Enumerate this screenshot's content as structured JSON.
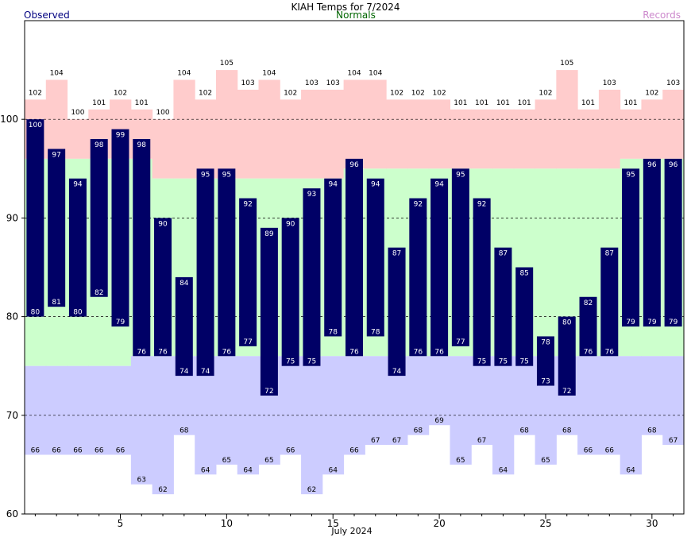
{
  "chart_data": {
    "type": "bar",
    "title": "KIAH Temps for 7/2024",
    "legend": {
      "observed": "Observed",
      "normals": "Normals",
      "records": "Records",
      "placement": "top"
    },
    "xlabel": "July 2024",
    "ylim": [
      60,
      110
    ],
    "yticks": [
      "60",
      "70",
      "80",
      "90",
      "100"
    ],
    "xticks": [
      {
        "day": 5,
        "label": "5"
      },
      {
        "day": 10,
        "label": "10"
      },
      {
        "day": 15,
        "label": "15"
      },
      {
        "day": 20,
        "label": "20"
      },
      {
        "day": 25,
        "label": "25"
      },
      {
        "day": 30,
        "label": "30"
      }
    ],
    "grid_lines": [
      70,
      80,
      90,
      100
    ],
    "colors": {
      "observed": "#000066",
      "normal": "#ccffcc",
      "record_high": "#ffcccc",
      "record_low": "#ccccff",
      "observed_label": "#000080",
      "normals_label": "#006600",
      "records_label": "#cc88cc"
    },
    "days": [
      1,
      2,
      3,
      4,
      5,
      6,
      7,
      8,
      9,
      10,
      11,
      12,
      13,
      14,
      15,
      16,
      17,
      18,
      19,
      20,
      21,
      22,
      23,
      24,
      25,
      26,
      27,
      28,
      29,
      30,
      31
    ],
    "observed_high": [
      "100",
      "97",
      "94",
      "98",
      "99",
      "98",
      "90",
      "84",
      "95",
      "95",
      "92",
      "89",
      "90",
      "93",
      "94",
      "96",
      "94",
      "87",
      "92",
      "94",
      "95",
      "92",
      "87",
      "85",
      "78",
      "80",
      "82",
      "87",
      "95",
      "96",
      "96"
    ],
    "observed_low": [
      "80",
      "81",
      "80",
      "82",
      "79",
      "76",
      "76",
      "74",
      "74",
      "76",
      "77",
      "72",
      "75",
      "75",
      "78",
      "76",
      "78",
      "74",
      "76",
      "76",
      "77",
      "75",
      "75",
      "75",
      "73",
      "72",
      "76",
      "76",
      "79",
      "79",
      "79"
    ],
    "normal_high": [
      96,
      96,
      96,
      96,
      96,
      96,
      94,
      94,
      94,
      94,
      94,
      94,
      94,
      94,
      94,
      95,
      95,
      95,
      95,
      95,
      95,
      95,
      95,
      95,
      95,
      95,
      95,
      95,
      96,
      96,
      96
    ],
    "normal_low": [
      75,
      75,
      75,
      75,
      75,
      76,
      76,
      76,
      76,
      76,
      76,
      76,
      76,
      76,
      76,
      76,
      76,
      76,
      76,
      76,
      76,
      76,
      76,
      76,
      76,
      76,
      76,
      76,
      76,
      76,
      76
    ],
    "record_high": [
      "102",
      "104",
      "100",
      "101",
      "102",
      "101",
      "100",
      "104",
      "102",
      "105",
      "103",
      "104",
      "102",
      "103",
      "103",
      "104",
      "104",
      "102",
      "102",
      "102",
      "101",
      "101",
      "101",
      "101",
      "102",
      "105",
      "101",
      "103",
      "101",
      "102",
      "103"
    ],
    "record_low": [
      "66",
      "66",
      "66",
      "66",
      "66",
      "63",
      "62",
      "68",
      "64",
      "65",
      "64",
      "65",
      "66",
      "62",
      "64",
      "66",
      "67",
      "67",
      "68",
      "69",
      "65",
      "67",
      "64",
      "68",
      "65",
      "68",
      "66",
      "66",
      "64",
      "68",
      "67"
    ]
  }
}
